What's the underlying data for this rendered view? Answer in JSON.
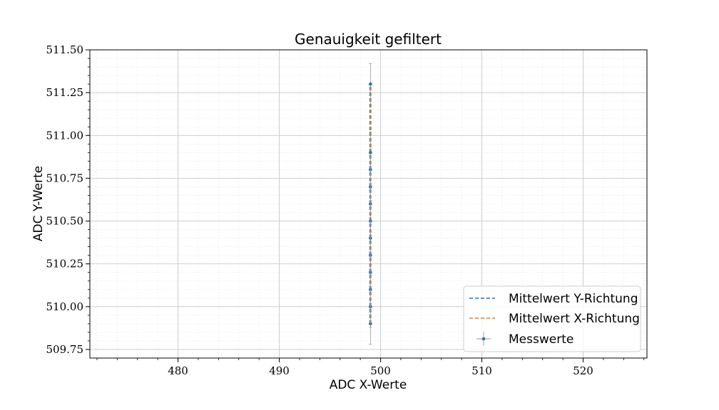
{
  "chart_data": {
    "type": "scatter",
    "title": "Genauigkeit gefiltert",
    "xlabel": "ADC X-Werte",
    "ylabel": "ADC Y-Werte",
    "xlim": [
      471.3,
      526.3
    ],
    "ylim": [
      509.7,
      511.5
    ],
    "x_ticks": [
      480,
      490,
      500,
      510,
      520
    ],
    "y_ticks": [
      509.75,
      510.0,
      510.25,
      510.5,
      510.75,
      511.0,
      511.25,
      511.5
    ],
    "x_tick_labels": [
      "480",
      "490",
      "500",
      "510",
      "520"
    ],
    "y_tick_labels": [
      "509.75",
      "510.00",
      "510.25",
      "510.50",
      "510.75",
      "511.00",
      "511.25",
      "511.50"
    ],
    "grid": true,
    "minor_grid": true,
    "legend_position": "lower-right",
    "series": [
      {
        "name": "Mittelwert Y-Richtung",
        "kind": "line",
        "style": "dashed",
        "color": "#1f77b4",
        "x": [
          499,
          499
        ],
        "y": [
          509.9,
          511.3
        ]
      },
      {
        "name": "Mittelwert X-Richtung",
        "kind": "line",
        "style": "dashed",
        "color": "#ff7f0e",
        "x": [
          499,
          499
        ],
        "y": [
          509.9,
          511.3
        ]
      },
      {
        "name": "Messwerte",
        "kind": "errorbar",
        "color": "#1f77b4",
        "error_color": "#999999",
        "x": [
          499,
          499,
          499,
          499,
          499,
          499,
          499,
          499,
          499,
          499,
          499,
          499
        ],
        "y": [
          509.9,
          510.0,
          510.1,
          510.2,
          510.3,
          510.4,
          510.5,
          510.6,
          510.7,
          510.8,
          510.9,
          511.3
        ],
        "yerr": 0.12,
        "xerr": 0.15
      }
    ]
  }
}
